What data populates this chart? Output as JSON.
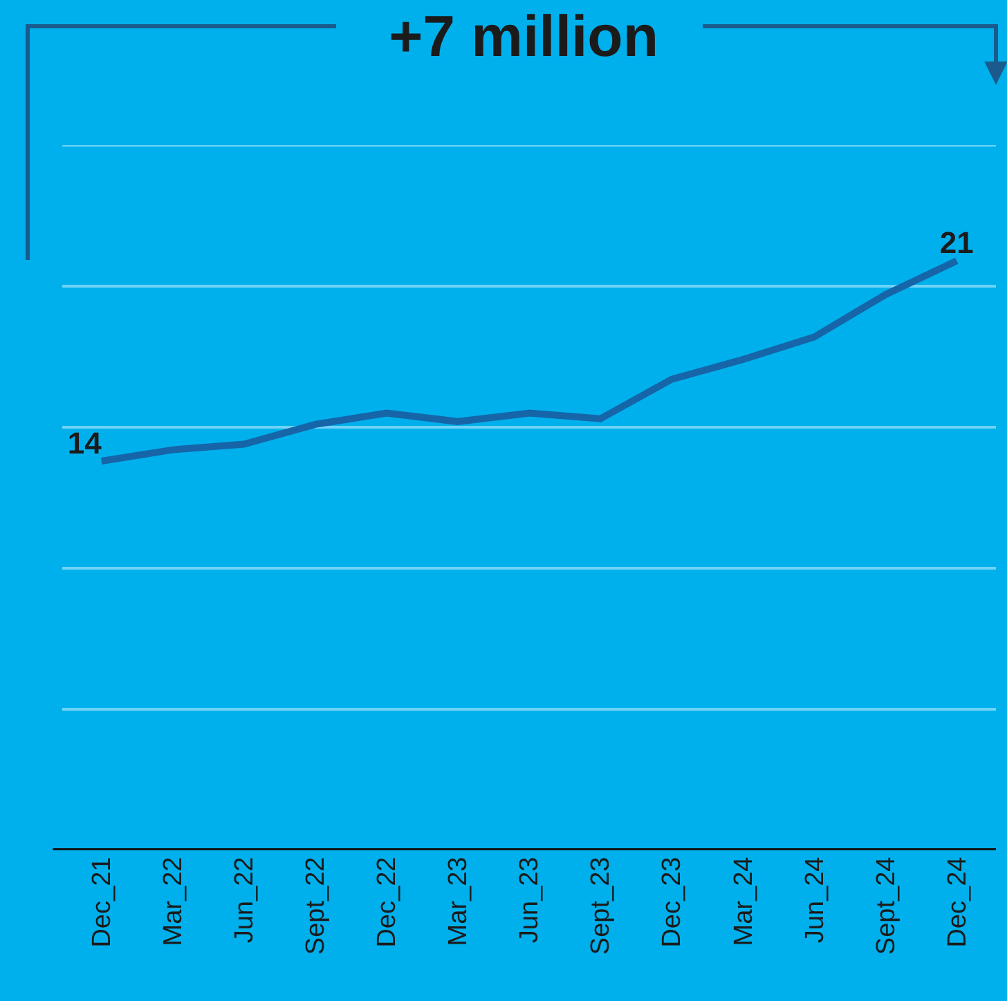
{
  "chart_data": {
    "type": "line",
    "title": "+7 million",
    "categories": [
      "Dec_21",
      "Mar_22",
      "Jun_22",
      "Sept_22",
      "Dec_22",
      "Mar_23",
      "Jun_23",
      "Sept_23",
      "Dec_23",
      "Mar_24",
      "Jun_24",
      "Sept_24",
      "Dec_24"
    ],
    "series": [
      {
        "color": "#1565a8",
        "values": [
          13.8,
          14.2,
          14.4,
          15.1,
          15.5,
          15.2,
          15.5,
          15.3,
          16.7,
          17.4,
          18.2,
          19.7,
          20.9
        ],
        "value_labels": [
          "14",
          null,
          null,
          null,
          null,
          null,
          null,
          null,
          null,
          null,
          null,
          null,
          "21"
        ]
      }
    ],
    "ylim": [
      0,
      25
    ],
    "yticks": [
      {
        "value": 5,
        "label": null
      },
      {
        "value": 10,
        "label": null
      },
      {
        "value": 15,
        "label": null
      },
      {
        "value": 20,
        "label": null
      },
      {
        "value": 25,
        "label": null
      }
    ],
    "grid": "y",
    "legend": false,
    "tick_labels": "x",
    "marker": "none",
    "line_style": "solid"
  }
}
